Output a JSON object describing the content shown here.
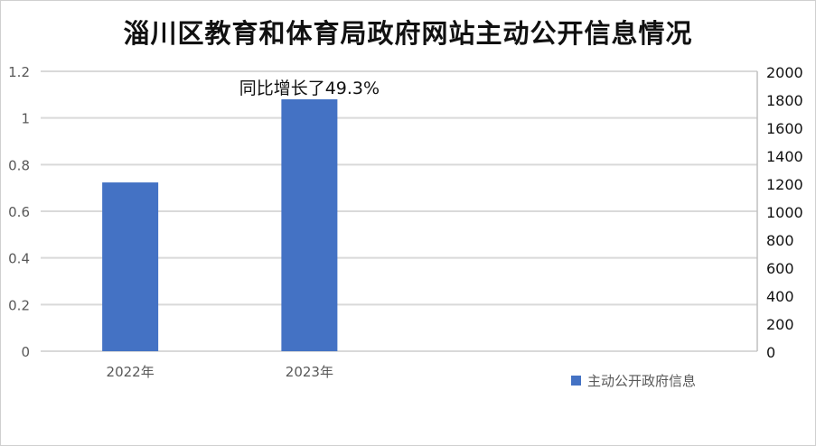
{
  "chart_data": {
    "type": "bar",
    "title": "淄川区教育和体育局政府网站主动公开信息情况",
    "categories": [
      "2022年",
      "2023年"
    ],
    "series": [
      {
        "name": "主动公开政府信息",
        "values": [
          1206,
          1800
        ],
        "color": "#4472c4",
        "axis": "right"
      }
    ],
    "left_axis": {
      "ylim": [
        0,
        1.2
      ],
      "ticks": [
        "0",
        "0.2",
        "0.4",
        "0.6",
        "0.8",
        "1",
        "1.2"
      ]
    },
    "right_axis": {
      "ylim": [
        0,
        2000
      ],
      "ticks": [
        "0",
        "200",
        "400",
        "600",
        "800",
        "1000",
        "1200",
        "1400",
        "1600",
        "1800",
        "2000"
      ]
    },
    "annotation": "同比增长了49.3%",
    "grid": true,
    "legend_position": "bottom-right"
  }
}
